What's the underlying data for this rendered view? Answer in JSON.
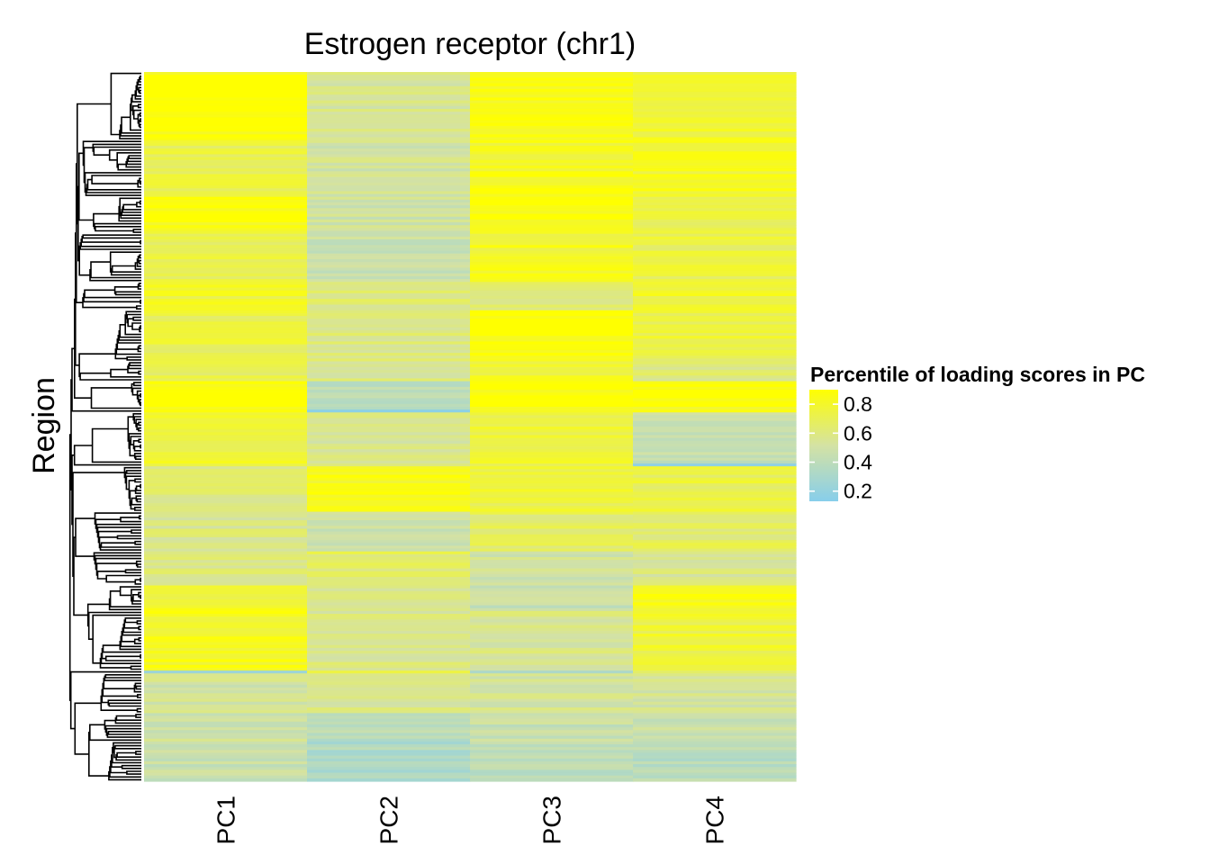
{
  "chart_data": {
    "type": "heatmap",
    "title": "Estrogen receptor (chr1)",
    "ylabel": "Region",
    "xlabel": "",
    "columns": [
      "PC1",
      "PC2",
      "PC3",
      "PC4"
    ],
    "n_rows": 250,
    "row_dendrogram": true,
    "legend": {
      "title": "Percentile of loading scores in PC",
      "ticks": [
        0.8,
        0.6,
        0.4,
        0.2
      ],
      "range": [
        0.13,
        0.9
      ],
      "position": "right",
      "low_color": "#87ceeb",
      "mid_color": "#d4e2a4",
      "high_color": "#ffff00"
    },
    "segments": [
      {
        "rows": 24,
        "values": [
          0.88,
          0.55,
          0.86,
          0.78
        ]
      },
      {
        "rows": 20,
        "values": [
          0.72,
          0.52,
          0.82,
          0.8
        ]
      },
      {
        "rows": 12,
        "values": [
          0.86,
          0.5,
          0.88,
          0.74
        ]
      },
      {
        "rows": 18,
        "values": [
          0.7,
          0.46,
          0.8,
          0.72
        ]
      },
      {
        "rows": 10,
        "values": [
          0.78,
          0.62,
          0.62,
          0.78
        ]
      },
      {
        "rows": 16,
        "values": [
          0.72,
          0.6,
          0.88,
          0.74
        ]
      },
      {
        "rows": 9,
        "values": [
          0.7,
          0.58,
          0.8,
          0.62
        ]
      },
      {
        "rows": 10,
        "values": [
          0.9,
          0.4,
          0.86,
          0.86
        ]
      },
      {
        "rows": 1,
        "values": [
          0.88,
          0.16,
          0.82,
          0.86
        ]
      },
      {
        "rows": 18,
        "values": [
          0.76,
          0.56,
          0.74,
          0.46
        ]
      },
      {
        "rows": 1,
        "values": [
          0.74,
          0.6,
          0.7,
          0.18
        ]
      },
      {
        "rows": 16,
        "values": [
          0.62,
          0.84,
          0.74,
          0.72
        ]
      },
      {
        "rows": 14,
        "values": [
          0.58,
          0.48,
          0.66,
          0.66
        ]
      },
      {
        "rows": 12,
        "values": [
          0.6,
          0.66,
          0.5,
          0.58
        ]
      },
      {
        "rows": 8,
        "values": [
          0.76,
          0.54,
          0.46,
          0.84
        ]
      },
      {
        "rows": 22,
        "values": [
          0.82,
          0.58,
          0.56,
          0.76
        ]
      },
      {
        "rows": 1,
        "values": [
          0.24,
          0.74,
          0.32,
          0.66
        ]
      },
      {
        "rows": 14,
        "values": [
          0.52,
          0.56,
          0.54,
          0.54
        ]
      },
      {
        "rows": 10,
        "values": [
          0.5,
          0.4,
          0.46,
          0.48
        ]
      },
      {
        "rows": 14,
        "values": [
          0.46,
          0.34,
          0.4,
          0.38
        ]
      }
    ]
  }
}
